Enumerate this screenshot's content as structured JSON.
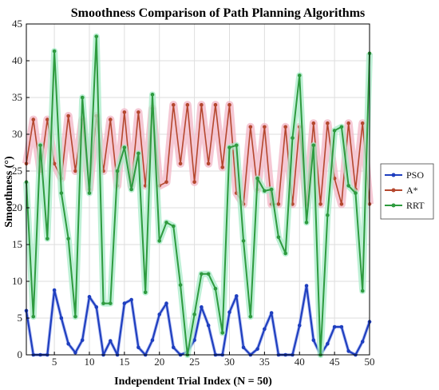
{
  "chart_data": {
    "type": "line",
    "title": "Smoothness Comparison of Path Planning Algorithms",
    "xlabel": "Independent Trial Index (N = 50)",
    "ylabel": "Smoothness (°)",
    "xlim": [
      1,
      50
    ],
    "ylim": [
      0,
      45
    ],
    "xticks": [
      5,
      10,
      15,
      20,
      25,
      30,
      35,
      40,
      45,
      50
    ],
    "yticks": [
      0,
      5,
      10,
      15,
      20,
      25,
      30,
      35,
      40,
      45
    ],
    "grid": true,
    "legend_position": "right",
    "x": [
      1,
      2,
      3,
      4,
      5,
      6,
      7,
      8,
      9,
      10,
      11,
      12,
      13,
      14,
      15,
      16,
      17,
      18,
      19,
      20,
      21,
      22,
      23,
      24,
      25,
      26,
      27,
      28,
      29,
      30,
      31,
      32,
      33,
      34,
      35,
      36,
      37,
      38,
      39,
      40,
      41,
      42,
      43,
      44,
      45,
      46,
      47,
      48,
      49,
      50
    ],
    "series": [
      {
        "name": "PSO",
        "color": "#1f3fbf",
        "values": [
          6.0,
          0.0,
          0.0,
          0.0,
          8.8,
          5.0,
          1.5,
          0.3,
          2.0,
          7.9,
          6.5,
          0.0,
          1.9,
          0.0,
          7.0,
          7.5,
          1.0,
          0.0,
          2.0,
          5.5,
          7.0,
          1.0,
          0.0,
          0.4,
          2.0,
          6.5,
          4.0,
          0.0,
          0.0,
          5.8,
          8.0,
          1.0,
          0.0,
          0.8,
          3.5,
          5.7,
          0.0,
          0.0,
          0.0,
          4.0,
          9.4,
          2.0,
          0.0,
          1.5,
          3.8,
          3.8,
          0.5,
          0.0,
          1.8,
          4.5
        ]
      },
      {
        "name": "A*",
        "color": "#b5472e",
        "values": [
          26.0,
          32.0,
          25.0,
          32.0,
          26.0,
          24.0,
          32.5,
          25.0,
          32.0,
          22.5,
          32.5,
          25.0,
          32.0,
          23.0,
          33.0,
          23.0,
          33.0,
          23.0,
          33.5,
          23.0,
          23.5,
          34.0,
          26.0,
          34.0,
          23.5,
          34.0,
          26.0,
          34.0,
          25.5,
          34.0,
          22.0,
          20.5,
          31.0,
          22.5,
          31.0,
          20.5,
          20.5,
          31.0,
          20.5,
          31.0,
          20.5,
          31.5,
          20.5,
          31.5,
          24.0,
          20.5,
          31.5,
          22.5,
          31.5,
          20.5
        ]
      },
      {
        "name": "RRT",
        "color": "#2e9b3f",
        "values": [
          23.5,
          5.2,
          28.5,
          15.8,
          41.3,
          22.0,
          15.8,
          5.2,
          35.0,
          22.0,
          43.3,
          7.0,
          7.0,
          25.0,
          28.2,
          22.5,
          27.4,
          8.5,
          35.4,
          15.5,
          18.0,
          17.5,
          9.5,
          0.0,
          5.5,
          11.0,
          11.0,
          9.0,
          3.0,
          28.2,
          28.5,
          15.5,
          5.2,
          24.0,
          22.3,
          22.5,
          16.0,
          13.8,
          29.5,
          38.0,
          18.0,
          28.5,
          0.0,
          19.0,
          30.5,
          31.0,
          23.0,
          22.0,
          8.7,
          41.0
        ]
      }
    ]
  }
}
